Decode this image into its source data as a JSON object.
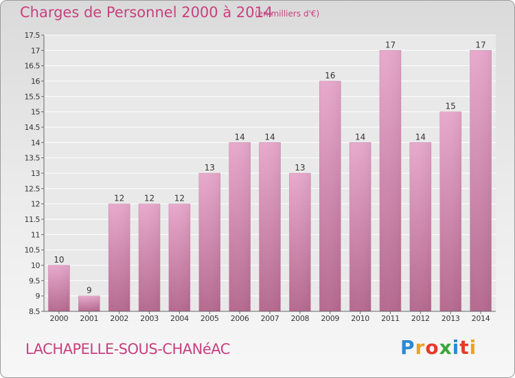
{
  "header": {
    "title": "Charges de Personnel 2000 à 2014",
    "subtitle": "(en milliers d'€)"
  },
  "footer": {
    "commune": "LACHAPELLE-SOUS-CHANéAC",
    "logo_letters": [
      "P",
      "r",
      "o",
      "x",
      "i",
      "t",
      "i"
    ],
    "logo_colors": [
      "#2a8ad6",
      "#f0a020",
      "#e63a2a",
      "#3aa63a",
      "#2a8ad6",
      "#e63a2a",
      "#f0a020"
    ]
  },
  "chart_data": {
    "type": "bar",
    "title": "Charges de Personnel 2000 à 2014",
    "subtitle": "(en milliers d'€)",
    "categories": [
      "2000",
      "2001",
      "2002",
      "2003",
      "2004",
      "2005",
      "2006",
      "2007",
      "2008",
      "2009",
      "2010",
      "2011",
      "2012",
      "2013",
      "2014"
    ],
    "values": [
      10,
      9,
      12,
      12,
      12,
      13,
      14,
      14,
      13,
      16,
      14,
      17,
      14,
      15,
      17
    ],
    "data_labels": [
      "10",
      "9",
      "12",
      "12",
      "12",
      "13",
      "14",
      "14",
      "13",
      "16",
      "14",
      "17",
      "14",
      "15",
      "17"
    ],
    "ylim": [
      8.5,
      17.5
    ],
    "yticks": [
      "8.5",
      "9",
      "9.5",
      "10",
      "10.5",
      "11",
      "11.5",
      "12",
      "12.5",
      "13",
      "13.5",
      "14",
      "14.5",
      "15",
      "15.5",
      "16",
      "16.5",
      "17",
      "17.5"
    ],
    "grid": true,
    "xlabel": "",
    "ylabel": "",
    "bar_color": "#d98ab6"
  }
}
